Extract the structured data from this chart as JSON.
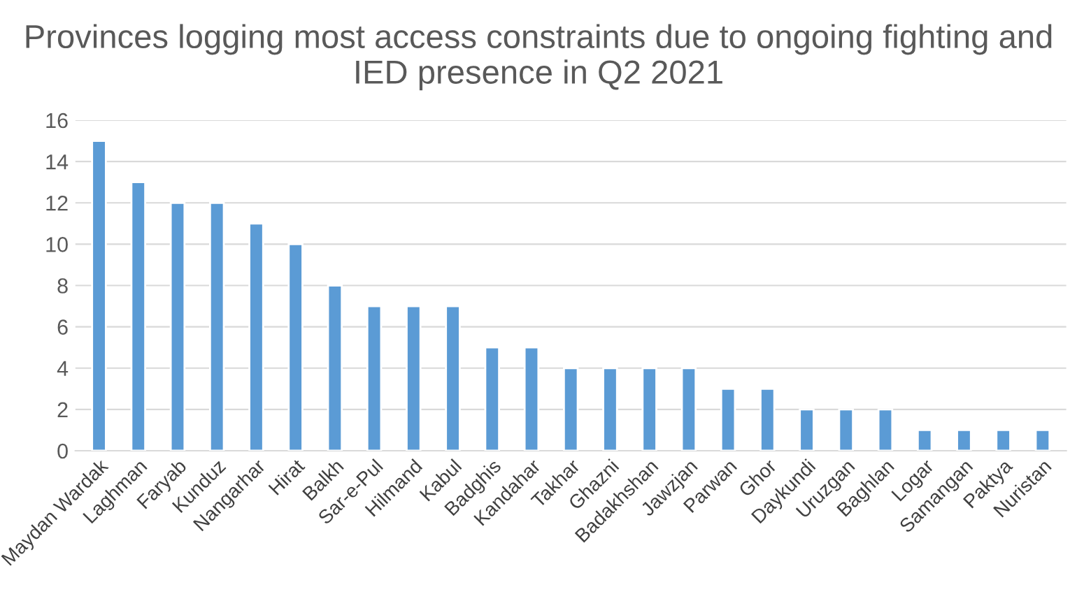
{
  "chart_data": {
    "type": "bar",
    "title": "Provinces logging most access constraints due to ongoing fighting and IED presence in Q2 2021",
    "categories": [
      "Maydan Wardak",
      "Laghman",
      "Faryab",
      "Kunduz",
      "Nangarhar",
      "Hirat",
      "Balkh",
      "Sar-e-Pul",
      "Hilmand",
      "Kabul",
      "Badghis",
      "Kandahar",
      "Takhar",
      "Ghazni",
      "Badakhshan",
      "Jawzjan",
      "Parwan",
      "Ghor",
      "Daykundi",
      "Uruzgan",
      "Baghlan",
      "Logar",
      "Samangan",
      "Paktya",
      "Nuristan"
    ],
    "values": [
      15,
      13,
      12,
      12,
      11,
      10,
      8,
      7,
      7,
      7,
      5,
      5,
      4,
      4,
      4,
      4,
      3,
      3,
      2,
      2,
      2,
      1,
      1,
      1,
      1
    ],
    "color": "#5b9bd5",
    "ylim": [
      0,
      16
    ],
    "yticks": [
      0,
      2,
      4,
      6,
      8,
      10,
      12,
      14,
      16
    ],
    "grid": "y"
  }
}
